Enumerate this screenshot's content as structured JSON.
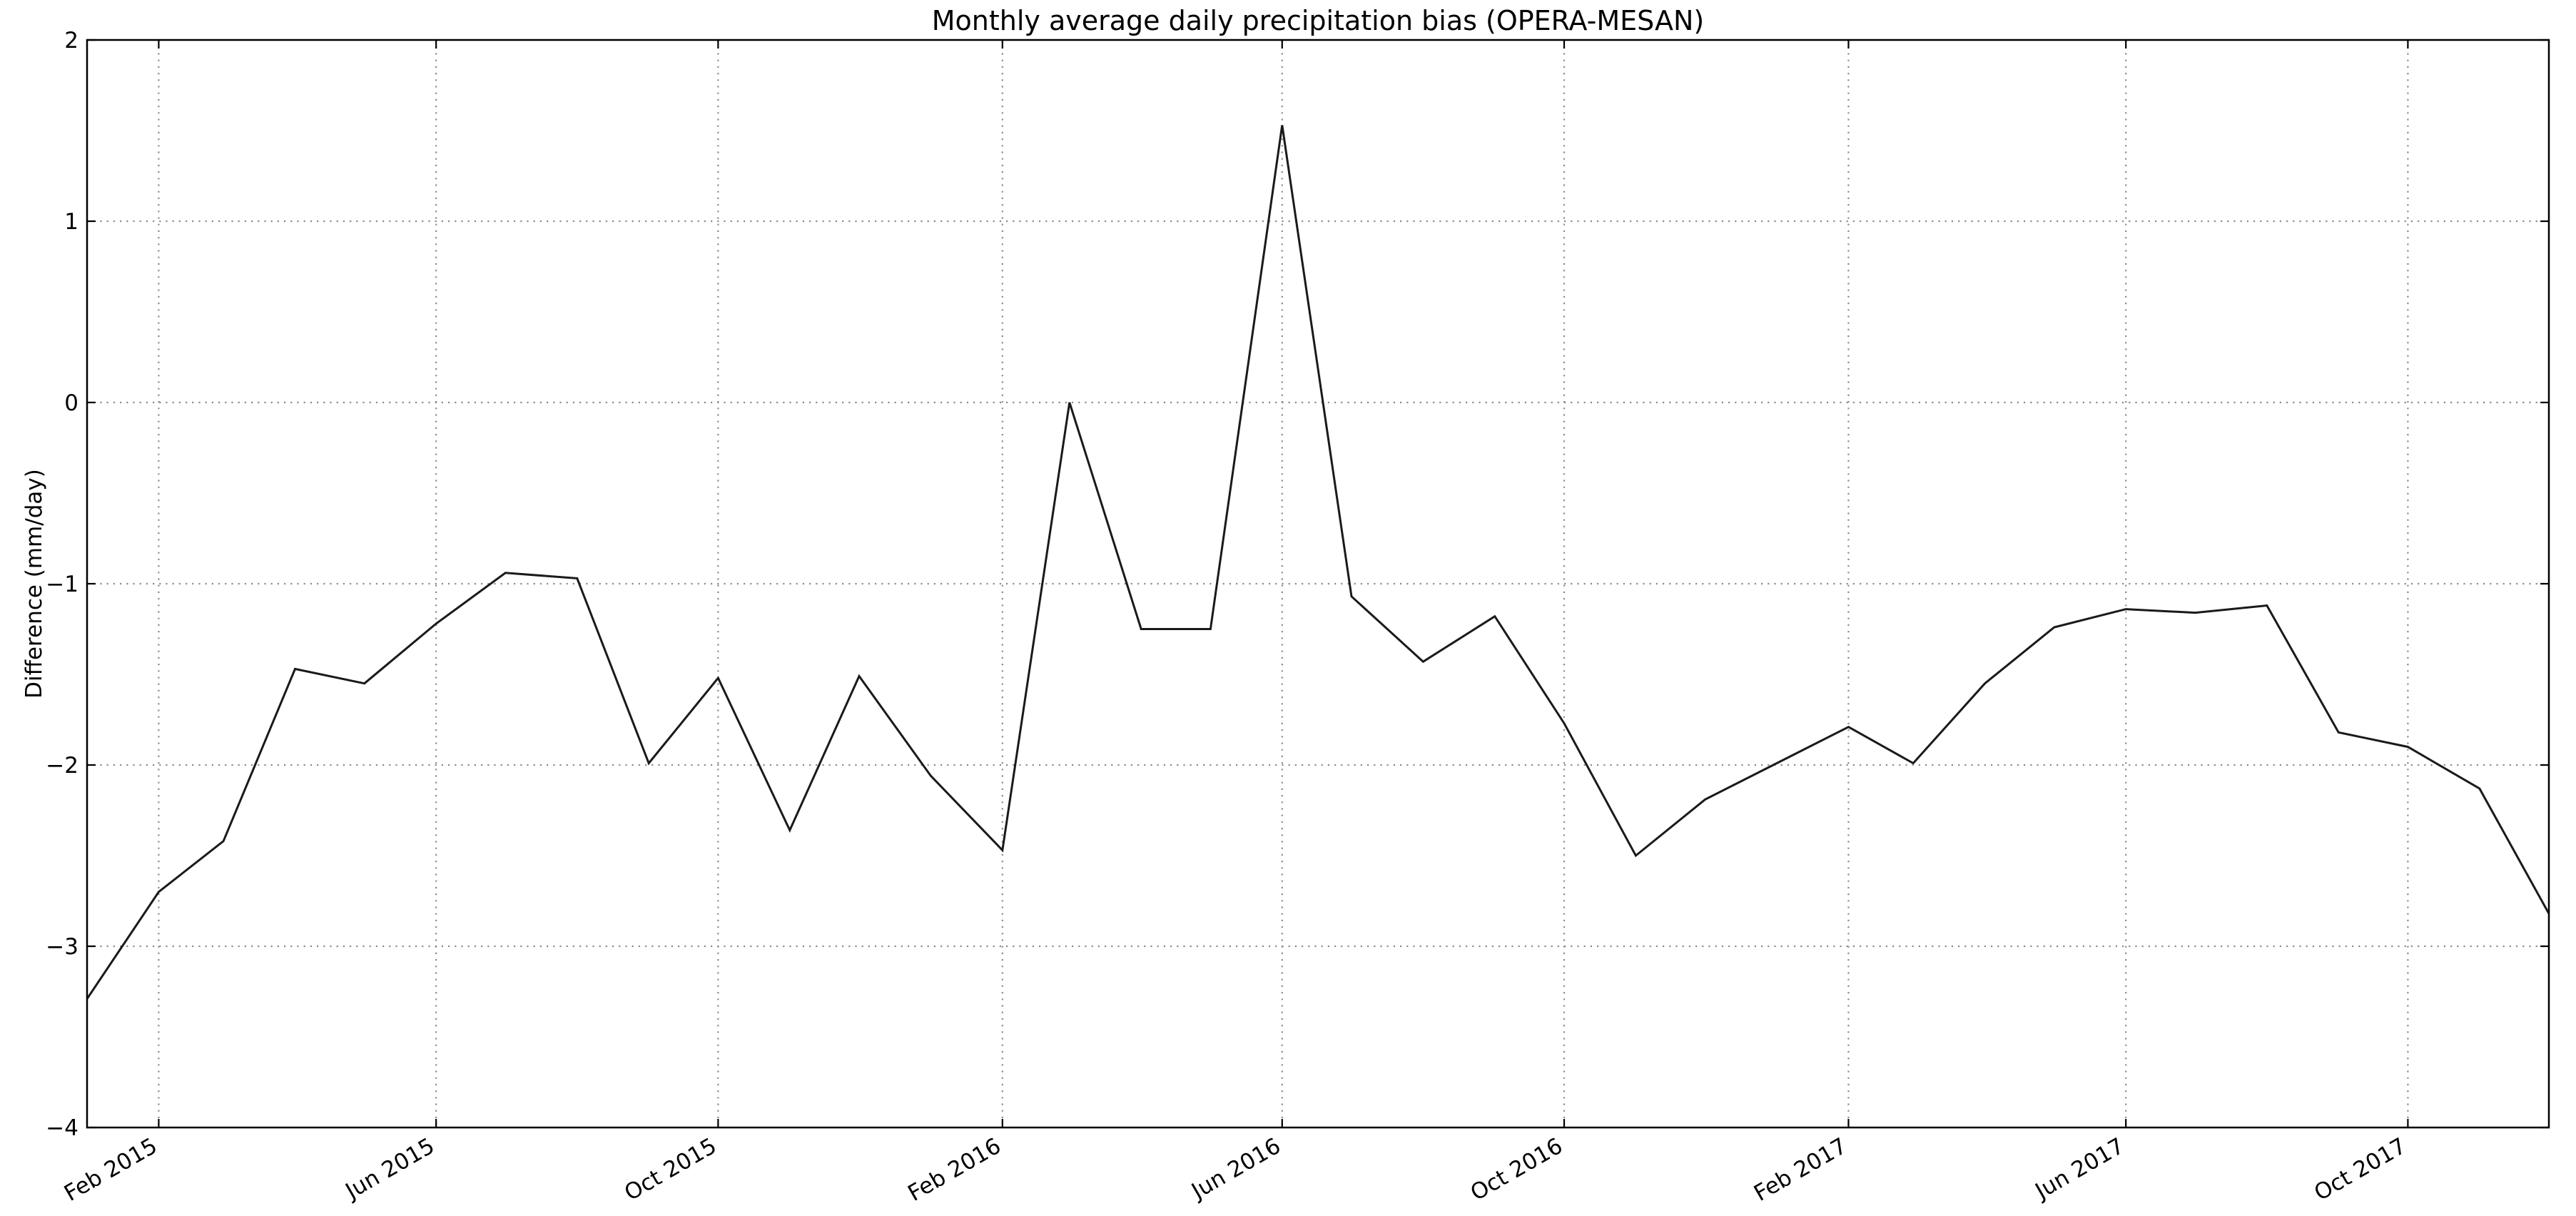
{
  "chart_data": {
    "type": "line",
    "title": "Monthly average daily precipitation bias (OPERA-MESAN)",
    "xlabel": "",
    "ylabel": "Difference (mm/day)",
    "ylim": [
      -4,
      2
    ],
    "xlim": [
      "2015-01-01",
      "2017-12-01"
    ],
    "yticks": [
      -4,
      -3,
      -2,
      -1,
      0,
      1,
      2
    ],
    "yticklabels": [
      "−4",
      "−3",
      "−2",
      "−1",
      "0",
      "1",
      "2"
    ],
    "xticks": [
      {
        "date": "2015-02-01",
        "label": "Feb 2015"
      },
      {
        "date": "2015-06-01",
        "label": "Jun 2015"
      },
      {
        "date": "2015-10-01",
        "label": "Oct 2015"
      },
      {
        "date": "2016-02-01",
        "label": "Feb 2016"
      },
      {
        "date": "2016-06-01",
        "label": "Jun 2016"
      },
      {
        "date": "2016-10-01",
        "label": "Oct 2016"
      },
      {
        "date": "2017-02-01",
        "label": "Feb 2017"
      },
      {
        "date": "2017-06-01",
        "label": "Jun 2017"
      },
      {
        "date": "2017-10-01",
        "label": "Oct 2017"
      }
    ],
    "grid": true,
    "line_color": "#1a1a1a",
    "series": [
      {
        "x": [
          "2015-01-01",
          "2015-02-01",
          "2015-03-01",
          "2015-04-01",
          "2015-05-01",
          "2015-06-01",
          "2015-07-01",
          "2015-08-01",
          "2015-09-01",
          "2015-10-01",
          "2015-11-01",
          "2015-12-01",
          "2016-01-01",
          "2016-02-01",
          "2016-03-01",
          "2016-04-01",
          "2016-05-01",
          "2016-06-01",
          "2016-07-01",
          "2016-08-01",
          "2016-09-01",
          "2016-10-01",
          "2016-11-01",
          "2016-12-01",
          "2017-01-01",
          "2017-02-01",
          "2017-03-01",
          "2017-04-01",
          "2017-05-01",
          "2017-06-01",
          "2017-07-01",
          "2017-08-01",
          "2017-09-01",
          "2017-10-01",
          "2017-11-01",
          "2017-12-01"
        ],
        "values": [
          -3.29,
          -2.7,
          -2.42,
          -1.47,
          -1.55,
          -1.22,
          -0.94,
          -0.97,
          -1.99,
          -1.52,
          -2.36,
          -1.51,
          -2.06,
          -2.47,
          0.0,
          -1.25,
          -1.25,
          1.53,
          -1.07,
          -1.43,
          -1.18,
          -1.77,
          -2.5,
          -2.19,
          -1.99,
          -1.79,
          -1.99,
          -1.55,
          -1.24,
          -1.14,
          -1.16,
          -1.12,
          -1.82,
          -1.9,
          -2.13,
          -2.82
        ]
      }
    ]
  }
}
